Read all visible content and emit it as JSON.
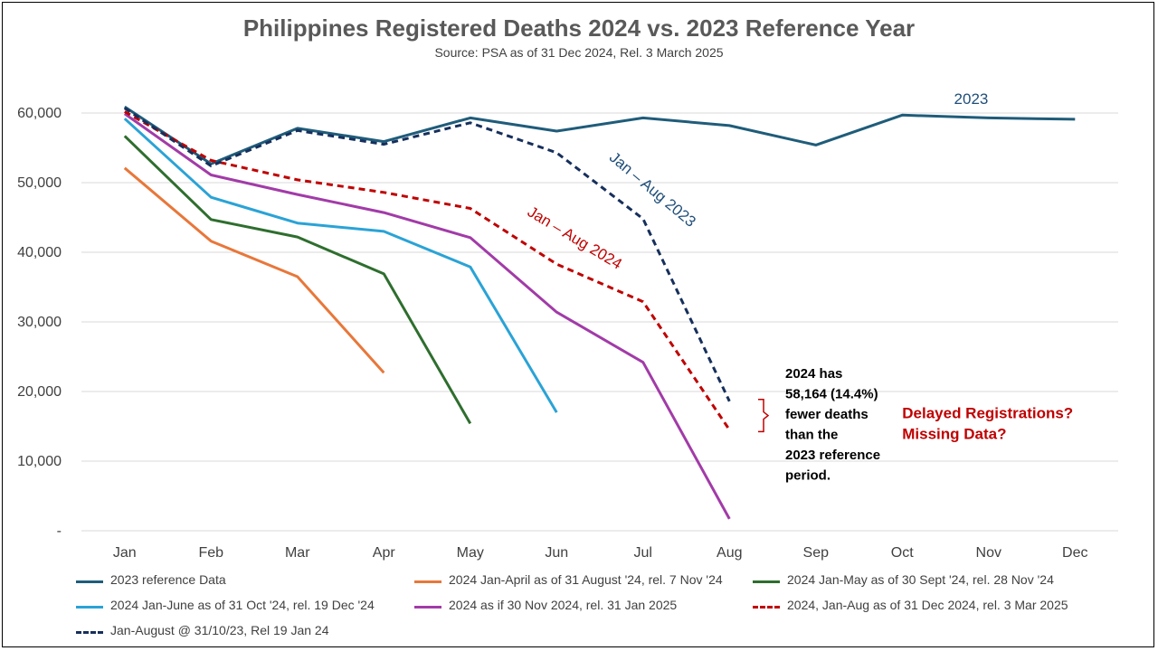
{
  "chart_data": {
    "type": "line",
    "title": "Philippines Registered Deaths 2024 vs. 2023 Reference Year",
    "subtitle": "Source: PSA as of 31 Dec 2024, Rel. 3 March 2025",
    "categories": [
      "Jan",
      "Feb",
      "Mar",
      "Apr",
      "May",
      "Jun",
      "Jul",
      "Aug",
      "Sep",
      "Oct",
      "Nov",
      "Dec"
    ],
    "ylim": [
      0,
      60000
    ],
    "yticks": [
      {
        "value": 0,
        "label": "-"
      },
      {
        "value": 10000,
        "label": "10,000"
      },
      {
        "value": 20000,
        "label": "20,000"
      },
      {
        "value": 30000,
        "label": "30,000"
      },
      {
        "value": 40000,
        "label": "40,000"
      },
      {
        "value": 50000,
        "label": "50,000"
      },
      {
        "value": 60000,
        "label": "60,000"
      }
    ],
    "grid": true,
    "legend_position": "bottom",
    "series": [
      {
        "name": "2023 reference Data",
        "color": "#1F5C7A",
        "dash": false,
        "values": [
          60900,
          52700,
          57800,
          55900,
          59300,
          57400,
          59300,
          58200,
          55400,
          59700,
          59300,
          59100
        ]
      },
      {
        "name": "2024 Jan-April as of 31 August '24, rel. 7 Nov '24",
        "color": "#E8773A",
        "dash": false,
        "values": [
          52100,
          41600,
          36500,
          22700,
          null,
          null,
          null,
          null,
          null,
          null,
          null,
          null
        ]
      },
      {
        "name": "2024 Jan-May as of 30 Sept '24, rel. 28 Nov '24",
        "color": "#2E6E2E",
        "dash": false,
        "values": [
          56700,
          44700,
          42200,
          36900,
          15400,
          null,
          null,
          null,
          null,
          null,
          null,
          null
        ]
      },
      {
        "name": "2024 Jan-June as of 31 Oct '24, rel. 19 Dec '24",
        "color": "#2AA3D6",
        "dash": false,
        "values": [
          59200,
          47900,
          44200,
          43000,
          37900,
          17000,
          null,
          null,
          null,
          null,
          null,
          null
        ]
      },
      {
        "name": "2024 as if 30 Nov 2024, rel. 31 Jan 2025",
        "color": "#A23BA8",
        "dash": false,
        "values": [
          59900,
          51100,
          48300,
          45700,
          42100,
          31400,
          24200,
          1700,
          null,
          null,
          null,
          null
        ]
      },
      {
        "name": "2024, Jan-Aug as of 31 Dec 2024, rel. 3 Mar 2025",
        "color": "#C00000",
        "dash": true,
        "values": [
          60200,
          53200,
          50400,
          48600,
          46300,
          38300,
          32900,
          14500,
          null,
          null,
          null,
          null
        ]
      },
      {
        "name": "Jan-August @ 31/10/23, Rel 19 Jan 24",
        "color": "#162F5C",
        "dash": true,
        "values": [
          60700,
          52400,
          57500,
          55500,
          58600,
          54300,
          44800,
          18600,
          null,
          null,
          null,
          null
        ]
      }
    ],
    "annotations": [
      {
        "text": "2023",
        "color": "#1F4E79",
        "x_index": 9.6,
        "y": 61300,
        "rotate": 0
      },
      {
        "text": "Jan – Aug 2023",
        "color": "#1F4E79",
        "x_index": 5.6,
        "y": 53400,
        "rotate": 40
      },
      {
        "text": "Jan – Aug 2024",
        "color": "#C00000",
        "x_index": 4.65,
        "y": 45400,
        "rotate": 31
      },
      {
        "text": "Delayed Registrations?",
        "color": "#C00000",
        "x_index": 9.0,
        "y": 16200,
        "rotate": 0,
        "bold": true
      },
      {
        "text": "Missing Data?",
        "color": "#C00000",
        "x_index": 9.0,
        "y": 13200,
        "rotate": 0,
        "bold": true
      }
    ],
    "callout_lines": [
      "2024 has",
      "58,164 (14.4%)",
      "fewer deaths",
      "than the",
      "2023 reference",
      "period."
    ]
  }
}
